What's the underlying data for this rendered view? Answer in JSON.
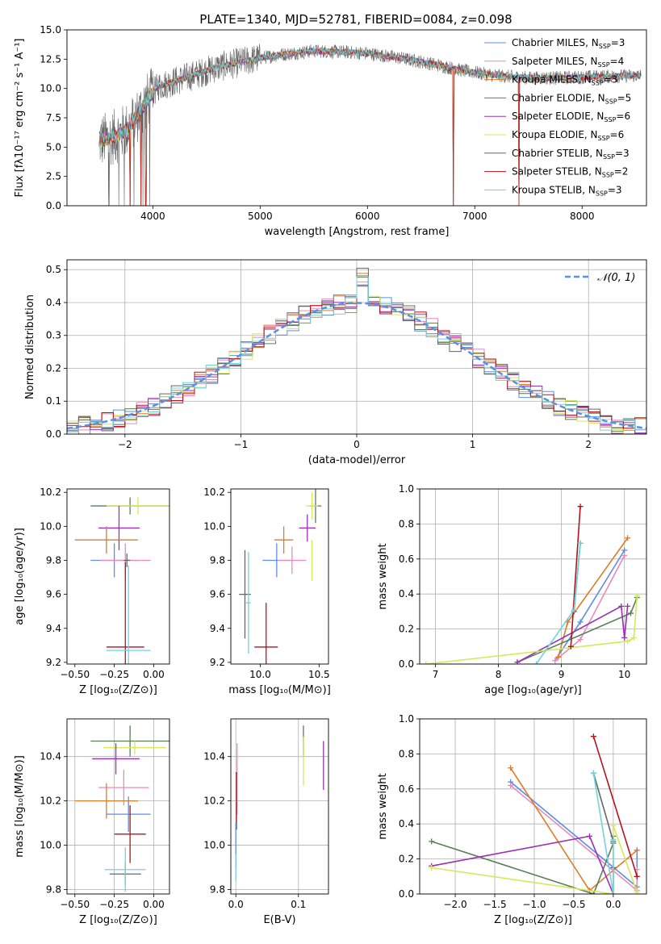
{
  "title": "PLATE=1340, MJD=52781, FIBERID=0084, z=0.098",
  "colors": {
    "chabrier_miles": "#5b8ee6",
    "salpeter_miles": "#e88bbd",
    "kroupa_miles": "#e07b26",
    "chabrier_elodie": "#5a7d5a",
    "salpeter_elodie": "#9b30b0",
    "kroupa_elodie": "#d4e85a",
    "chabrier_stelib": "#666666",
    "salpeter_stelib": "#b3141c",
    "kroupa_stelib": "#6fd3e0",
    "gaussian": "#5b8ee6",
    "grid": "#b0b0b0"
  },
  "chart_data": [
    {
      "id": "spectrum",
      "type": "line",
      "title": "PLATE=1340, MJD=52781, FIBERID=0084, z=0.098",
      "xlabel": "wavelength [Angstrom, rest frame]",
      "ylabel": "Flux [fλ10⁻¹⁷ erg cm⁻² s⁻¹ A⁻¹]",
      "xlim": [
        3200,
        8600
      ],
      "ylim": [
        0,
        15
      ],
      "xticks": [
        4000,
        5000,
        6000,
        7000,
        8000
      ],
      "yticks": [
        0.0,
        2.5,
        5.0,
        7.5,
        10.0,
        12.5,
        15.0
      ],
      "grid": false,
      "legend_position": "right",
      "legend": [
        {
          "key": "chabrier_miles",
          "label": "Chabrier MILES, N",
          "sub": "SSP",
          "tail": "=3"
        },
        {
          "key": "salpeter_miles",
          "label": "Salpeter MILES, N",
          "sub": "SSP",
          "tail": "=4"
        },
        {
          "key": "kroupa_miles",
          "label": "Kroupa MILES, N",
          "sub": "SSP",
          "tail": "=3"
        },
        {
          "key": "chabrier_elodie",
          "label": "Chabrier ELODIE, N",
          "sub": "SSP",
          "tail": "=5"
        },
        {
          "key": "salpeter_elodie",
          "label": "Salpeter ELODIE, N",
          "sub": "SSP",
          "tail": "=6"
        },
        {
          "key": "kroupa_elodie",
          "label": "Kroupa ELODIE, N",
          "sub": "SSP",
          "tail": "=6"
        },
        {
          "key": "chabrier_stelib",
          "label": "Chabrier STELIB, N",
          "sub": "SSP",
          "tail": "=3"
        },
        {
          "key": "salpeter_stelib",
          "label": "Salpeter STELIB, N",
          "sub": "SSP",
          "tail": "=2"
        },
        {
          "key": "kroupa_stelib",
          "label": "Kroupa STELIB, N",
          "sub": "SSP",
          "tail": "=3"
        }
      ],
      "data_range": [
        3500,
        8550
      ],
      "continuum": {
        "x": [
          3500,
          3650,
          3750,
          3850,
          3950,
          4050,
          4200,
          4400,
          4600,
          4800,
          5000,
          5200,
          5500,
          5800,
          6000,
          6300,
          6600,
          6900,
          7200,
          7500,
          7800,
          8100,
          8550
        ],
        "y": [
          5.5,
          5.9,
          6.4,
          7.6,
          9.0,
          10.2,
          10.6,
          11.2,
          11.8,
          12.2,
          12.6,
          12.9,
          13.2,
          13.1,
          13.0,
          12.6,
          12.1,
          11.5,
          11.1,
          10.9,
          10.9,
          11.0,
          11.1
        ]
      },
      "dips": [
        3790,
        3890,
        3935,
        6800,
        7410
      ]
    },
    {
      "id": "residuals",
      "type": "bar",
      "xlabel": "(data-model)/error",
      "ylabel": "Normed distribution",
      "xlim": [
        -2.5,
        2.5
      ],
      "ylim": [
        0,
        0.53
      ],
      "xticks": [
        -2,
        -1,
        0,
        1,
        2
      ],
      "yticks": [
        0.0,
        0.1,
        0.2,
        0.3,
        0.4,
        0.5
      ],
      "grid": true,
      "legend_position": "top-right",
      "legend_label": "𝒩(0, 1)",
      "bin_width": 0.1
    },
    {
      "id": "age_vs_Z",
      "type": "scatter",
      "xlabel": "Z [log₁₀(Z/Z⊙)]",
      "ylabel": "age  [log₁₀(age/yr)]",
      "xlim": [
        -0.55,
        0.1
      ],
      "ylim": [
        9.19,
        10.22
      ],
      "xticks": [
        -0.5,
        -0.25,
        0.0
      ],
      "yticks": [
        9.2,
        9.4,
        9.6,
        9.8,
        10.0,
        10.2
      ],
      "grid": false,
      "points": [
        {
          "key": "chabrier_elodie",
          "x": -0.15,
          "xerr": 0.25,
          "y": 10.12,
          "yerr": 0.05
        },
        {
          "key": "kroupa_elodie",
          "x": -0.1,
          "xerr": 0.2,
          "y": 10.12,
          "yerr": 0.05
        },
        {
          "key": "salpeter_elodie",
          "x": -0.22,
          "xerr": 0.13,
          "y": 9.99,
          "yerr": 0.13
        },
        {
          "key": "kroupa_miles",
          "x": -0.3,
          "xerr": 0.2,
          "y": 9.92,
          "yerr": 0.08
        },
        {
          "key": "chabrier_miles",
          "x": -0.25,
          "xerr": 0.15,
          "y": 9.8,
          "yerr": 0.1
        },
        {
          "key": "salpeter_miles",
          "x": -0.18,
          "xerr": 0.16,
          "y": 9.8,
          "yerr": 0.1
        },
        {
          "key": "chabrier_stelib",
          "x": -0.17,
          "xerr": 0.02,
          "y": 9.8,
          "yerr": 0.04
        },
        {
          "key": "salpeter_stelib",
          "x": -0.18,
          "xerr": 0.12,
          "y": 9.29,
          "yerr": 0.5
        },
        {
          "key": "kroupa_stelib",
          "x": -0.16,
          "xerr": 0.14,
          "y": 9.27,
          "yerr": 0.5
        }
      ]
    },
    {
      "id": "age_vs_mass",
      "type": "scatter",
      "xlabel": "mass [log₁₀(M/M⊙)]",
      "ylabel": "",
      "xlim": [
        9.75,
        10.58
      ],
      "ylim": [
        9.19,
        10.22
      ],
      "xticks": [
        10.0,
        10.5
      ],
      "yticks": [
        9.2,
        9.4,
        9.6,
        9.8,
        10.0,
        10.2
      ],
      "grid": false,
      "points": [
        {
          "key": "chabrier_elodie",
          "x": 10.47,
          "xerr": 0.05,
          "y": 10.12,
          "yerr": 0.1
        },
        {
          "key": "kroupa_elodie",
          "x": 10.44,
          "xerr": 0.05,
          "y": 10.12,
          "yerr": 0.08
        },
        {
          "key": "salpeter_elodie",
          "x": 10.4,
          "xerr": 0.07,
          "y": 9.99,
          "yerr": 0.08
        },
        {
          "key": "kroupa_miles",
          "x": 10.2,
          "xerr": 0.08,
          "y": 9.92,
          "yerr": 0.08
        },
        {
          "key": "chabrier_miles",
          "x": 10.14,
          "xerr": 0.12,
          "y": 9.8,
          "yerr": 0.1
        },
        {
          "key": "salpeter_miles",
          "x": 10.27,
          "xerr": 0.12,
          "y": 9.8,
          "yerr": 0.08
        },
        {
          "key": "kroupa_elodie_b",
          "color": "kroupa_elodie",
          "x": 10.44,
          "xerr": 0.0,
          "y": 9.8,
          "yerr": 0.12
        },
        {
          "key": "chabrier_stelib",
          "x": 9.87,
          "xerr": 0.05,
          "y": 9.6,
          "yerr": 0.26
        },
        {
          "key": "kroupa_stelib",
          "x": 9.9,
          "xerr": 0.02,
          "y": 9.55,
          "yerr": 0.3
        },
        {
          "key": "salpeter_stelib",
          "x": 10.05,
          "xerr": 0.1,
          "y": 9.29,
          "yerr": 0.26
        }
      ]
    },
    {
      "id": "weight_vs_age",
      "type": "line",
      "xlabel": "age  [log₁₀(age/yr)]",
      "ylabel": "mass weight",
      "xlim": [
        6.75,
        10.35
      ],
      "ylim": [
        0,
        1
      ],
      "xticks": [
        7,
        8,
        9,
        10
      ],
      "yticks": [
        0.0,
        0.2,
        0.4,
        0.6,
        0.8,
        1.0
      ],
      "grid": true,
      "series": [
        {
          "key": "chabrier_miles",
          "x": [
            8.9,
            9.3,
            10.0
          ],
          "y": [
            0.02,
            0.24,
            0.65
          ]
        },
        {
          "key": "salpeter_miles",
          "x": [
            8.9,
            9.3,
            10.0
          ],
          "y": [
            0.02,
            0.14,
            0.62
          ]
        },
        {
          "key": "kroupa_miles",
          "x": [
            8.95,
            9.1,
            10.05
          ],
          "y": [
            0.04,
            0.24,
            0.72
          ]
        },
        {
          "key": "chabrier_elodie",
          "x": [
            8.3,
            10.1,
            10.2
          ],
          "y": [
            0.01,
            0.29,
            0.38
          ]
        },
        {
          "key": "salpeter_elodie",
          "x": [
            8.3,
            9.95,
            10.0,
            10.05
          ],
          "y": [
            0.01,
            0.33,
            0.15,
            0.33
          ]
        },
        {
          "key": "kroupa_elodie",
          "x": [
            6.85,
            10.05,
            10.15,
            10.2
          ],
          "y": [
            0.0,
            0.13,
            0.15,
            0.39
          ]
        },
        {
          "key": "chabrier_stelib",
          "x": [
            9.2,
            9.3
          ],
          "y": [
            0.3,
            0.69
          ]
        },
        {
          "key": "salpeter_stelib",
          "x": [
            9.15,
            9.3
          ],
          "y": [
            0.1,
            0.9
          ]
        },
        {
          "key": "kroupa_stelib",
          "x": [
            8.6,
            9.2,
            9.3
          ],
          "y": [
            0.0,
            0.31,
            0.69
          ]
        }
      ]
    },
    {
      "id": "mass_vs_Z",
      "type": "scatter",
      "xlabel": "Z [log₁₀(Z/Z⊙)]",
      "ylabel": "mass [log₁₀(M/M⊙)]",
      "xlim": [
        -0.55,
        0.1
      ],
      "ylim": [
        9.78,
        10.57
      ],
      "xticks": [
        -0.5,
        -0.25,
        0.0
      ],
      "yticks": [
        9.8,
        10.0,
        10.2,
        10.4
      ],
      "grid": true,
      "points": [
        {
          "key": "chabrier_elodie",
          "x": -0.15,
          "xerr": 0.25,
          "y": 10.47,
          "yerr": 0.07
        },
        {
          "key": "kroupa_elodie",
          "x": -0.12,
          "xerr": 0.2,
          "y": 10.44,
          "yerr": 0.03
        },
        {
          "key": "salpeter_elodie",
          "x": -0.24,
          "xerr": 0.15,
          "y": 10.39,
          "yerr": 0.07
        },
        {
          "key": "salpeter_miles",
          "x": -0.19,
          "xerr": 0.16,
          "y": 10.26,
          "yerr": 0.08
        },
        {
          "key": "kroupa_miles",
          "x": -0.3,
          "xerr": 0.2,
          "y": 10.2,
          "yerr": 0.08
        },
        {
          "key": "chabrier_miles",
          "x": -0.16,
          "xerr": 0.14,
          "y": 10.14,
          "yerr": 0.08
        },
        {
          "key": "salpeter_stelib",
          "x": -0.15,
          "xerr": 0.1,
          "y": 10.05,
          "yerr": 0.13
        },
        {
          "key": "chabrier_stelib",
          "x": -0.18,
          "xerr": 0.1,
          "y": 9.87,
          "yerr": 0.05
        },
        {
          "key": "kroupa_stelib",
          "x": -0.18,
          "xerr": 0.13,
          "y": 9.89,
          "yerr": 0.1
        }
      ]
    },
    {
      "id": "mass_vs_ebv",
      "type": "scatter",
      "xlabel": "E(B-V)",
      "ylabel": "",
      "xlim": [
        -0.008,
        0.148
      ],
      "ylim": [
        9.78,
        10.57
      ],
      "xticks": [
        0.0,
        0.1
      ],
      "yticks": [
        9.8,
        10.0,
        10.2,
        10.4
      ],
      "grid": true,
      "points": [
        {
          "key": "chabrier_elodie",
          "x": 0.108,
          "xerr": 0,
          "y": 10.47,
          "yerr": 0.07
        },
        {
          "key": "kroupa_elodie",
          "x": 0.108,
          "xerr": 0,
          "y": 10.38,
          "yerr": 0.11
        },
        {
          "key": "salpeter_elodie",
          "x": 0.14,
          "xerr": 0,
          "y": 10.36,
          "yerr": 0.11
        },
        {
          "key": "salpeter_miles",
          "x": 0.002,
          "xerr": 0,
          "y": 10.3,
          "yerr": 0.16
        },
        {
          "key": "salpeter_stelib",
          "x": 0.001,
          "xerr": 0,
          "y": 10.2,
          "yerr": 0.13
        },
        {
          "key": "chabrier_miles",
          "x": 0.0,
          "xerr": 0,
          "y": 10.0,
          "yerr": 0.1
        },
        {
          "key": "kroupa_stelib",
          "x": 0.0,
          "xerr": 0,
          "y": 9.9,
          "yerr": 0.06
        }
      ]
    },
    {
      "id": "weight_vs_Z",
      "type": "line",
      "xlabel": "Z [log₁₀(Z/Z⊙)]",
      "ylabel": "mass weight",
      "xlim": [
        -2.45,
        0.42
      ],
      "ylim": [
        0,
        1
      ],
      "xticks": [
        -2.0,
        -1.5,
        -1.0,
        -0.5,
        0.0
      ],
      "yticks": [
        0.0,
        0.2,
        0.4,
        0.6,
        0.8,
        1.0
      ],
      "grid": true,
      "series": [
        {
          "key": "chabrier_miles",
          "x": [
            -1.3,
            0.3,
            0.3
          ],
          "y": [
            0.64,
            0.04,
            0.25
          ]
        },
        {
          "key": "salpeter_miles",
          "x": [
            -1.3,
            0.3,
            0.3
          ],
          "y": [
            0.62,
            0.02,
            0.14
          ]
        },
        {
          "key": "kroupa_miles",
          "x": [
            -1.3,
            -0.3,
            0.3
          ],
          "y": [
            0.72,
            0.02,
            0.25
          ]
        },
        {
          "key": "chabrier_elodie",
          "x": [
            -2.3,
            -0.25,
            0.0,
            0.0
          ],
          "y": [
            0.3,
            0.0,
            0.29,
            0.33
          ]
        },
        {
          "key": "salpeter_elodie",
          "x": [
            -2.3,
            -0.3,
            0.0,
            0.0
          ],
          "y": [
            0.16,
            0.33,
            0.0,
            0.15
          ]
        },
        {
          "key": "kroupa_elodie",
          "x": [
            -2.3,
            0.0,
            0.0,
            0.3
          ],
          "y": [
            0.15,
            0.0,
            0.39,
            0.01
          ]
        },
        {
          "key": "chabrier_stelib",
          "x": [
            -0.25,
            0.0
          ],
          "y": [
            0.69,
            0.3
          ]
        },
        {
          "key": "salpeter_stelib",
          "x": [
            -0.25,
            0.3
          ],
          "y": [
            0.9,
            0.1
          ]
        },
        {
          "key": "kroupa_stelib",
          "x": [
            -0.25,
            0.0,
            0.0
          ],
          "y": [
            0.69,
            0.0,
            0.31
          ]
        }
      ]
    }
  ]
}
